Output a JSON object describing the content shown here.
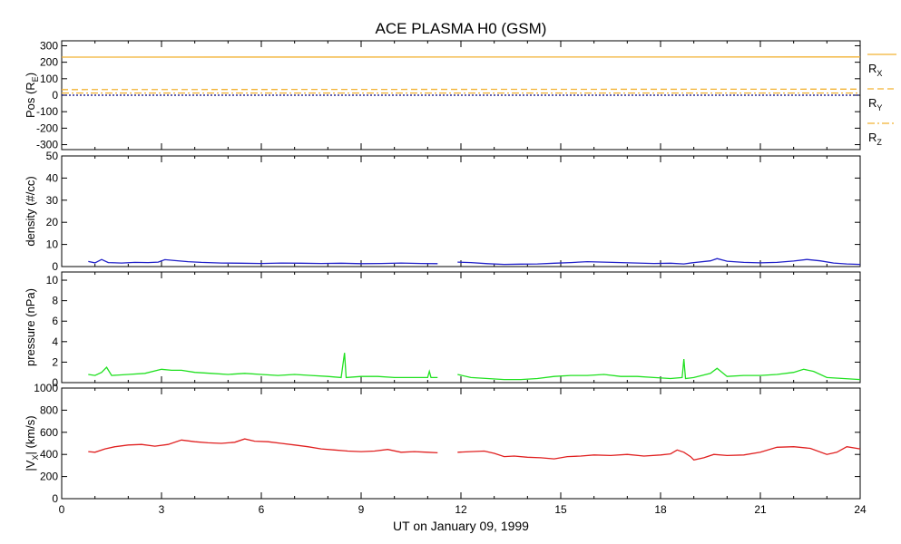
{
  "chart_data": {
    "type": "line",
    "title": "ACE PLASMA H0 (GSM)",
    "xlabel": "UT on January 09, 1999",
    "x_ticks": [
      0,
      3,
      6,
      9,
      12,
      15,
      18,
      21,
      24
    ],
    "xlim": [
      0,
      24
    ],
    "panels": [
      {
        "ylabel_main": "Pos (R",
        "ylabel_sub": "E",
        "ylabel_close": ")",
        "ylim": [
          -330,
          330
        ],
        "y_ticks": [
          -300,
          -200,
          -100,
          0,
          100,
          200,
          300
        ],
        "legend": [
          {
            "main": "R",
            "sub": "X",
            "dash": "solid"
          },
          {
            "main": "R",
            "sub": "Y",
            "dash": "dashed"
          },
          {
            "main": "R",
            "sub": "Z",
            "dash": "dashdot"
          }
        ],
        "series": [
          {
            "name": "RX",
            "color": "#f2b233",
            "dash": "solid",
            "x": [
              0,
              24
            ],
            "values": [
              231,
              232
            ]
          },
          {
            "name": "RY",
            "color": "#f2b233",
            "dash": "dashed",
            "x": [
              0,
              24
            ],
            "values": [
              34,
              37
            ]
          },
          {
            "name": "RZ",
            "color": "#f2b233",
            "dash": "dashdot",
            "x": [
              0,
              24
            ],
            "values": [
              13,
              13
            ]
          },
          {
            "name": "zero",
            "color": "#000080",
            "dash": "dotted",
            "x": [
              0,
              24
            ],
            "values": [
              0,
              0
            ]
          }
        ]
      },
      {
        "ylabel": "density (#/cc)",
        "ylim": [
          0,
          50
        ],
        "y_ticks": [
          0,
          10,
          20,
          30,
          40,
          50
        ],
        "series": [
          {
            "name": "density",
            "color": "#2020c8",
            "dash": "solid",
            "x": [
              0.8,
              1.0,
              1.2,
              1.4,
              1.8,
              2.2,
              2.6,
              2.9,
              3.1,
              3.4,
              3.8,
              4.2,
              4.8,
              5.4,
              6.0,
              6.6,
              7.2,
              7.8,
              8.4,
              9.0,
              9.6,
              10.2,
              10.8,
              11.3
            ],
            "values": [
              2.3,
              1.7,
              3.2,
              1.8,
              1.6,
              1.9,
              1.8,
              2.0,
              3.1,
              2.7,
              2.2,
              1.9,
              1.6,
              1.5,
              1.4,
              1.6,
              1.5,
              1.4,
              1.5,
              1.3,
              1.4,
              1.6,
              1.4,
              1.3
            ]
          },
          {
            "name": "density",
            "color": "#2020c8",
            "dash": "solid",
            "x": [
              11.9,
              12.3,
              12.8,
              13.3,
              13.8,
              14.3,
              14.8,
              15.3,
              15.8,
              16.3,
              16.8,
              17.3,
              17.8,
              18.3,
              18.7,
              19.0,
              19.5,
              19.7,
              20.0,
              20.5,
              21.0,
              21.5,
              22.0,
              22.4,
              22.8,
              23.2,
              23.6,
              24.0
            ],
            "values": [
              2.0,
              1.8,
              1.3,
              1.0,
              1.1,
              1.2,
              1.5,
              1.8,
              2.2,
              2.0,
              1.8,
              1.6,
              1.4,
              1.5,
              1.2,
              1.8,
              2.6,
              3.6,
              2.4,
              1.9,
              1.7,
              1.9,
              2.5,
              3.2,
              2.6,
              1.6,
              1.2,
              1.0
            ]
          }
        ]
      },
      {
        "ylabel": "pressure (nPa)",
        "ylim": [
          0,
          10.8
        ],
        "y_ticks": [
          0,
          2,
          4,
          6,
          8,
          10
        ],
        "series": [
          {
            "name": "pressure",
            "color": "#20e020",
            "dash": "solid",
            "x": [
              0.8,
              1.0,
              1.2,
              1.35,
              1.5,
              2.0,
              2.5,
              3.0,
              3.3,
              3.6,
              4.0,
              4.5,
              5.0,
              5.5,
              6.0,
              6.5,
              7.0,
              7.5,
              8.0,
              8.4,
              8.5,
              8.55,
              9.0,
              9.5,
              10.0,
              10.5,
              11.0,
              11.05,
              11.1,
              11.3
            ],
            "values": [
              0.8,
              0.7,
              1.0,
              1.5,
              0.7,
              0.8,
              0.9,
              1.3,
              1.2,
              1.2,
              1.0,
              0.9,
              0.8,
              0.9,
              0.8,
              0.7,
              0.8,
              0.7,
              0.6,
              0.5,
              2.9,
              0.5,
              0.6,
              0.6,
              0.5,
              0.5,
              0.5,
              1.1,
              0.5,
              0.5
            ]
          },
          {
            "name": "pressure",
            "color": "#20e020",
            "dash": "solid",
            "x": [
              11.9,
              12.3,
              12.8,
              13.3,
              13.8,
              14.3,
              14.8,
              15.3,
              15.8,
              16.3,
              16.8,
              17.3,
              17.8,
              18.3,
              18.65,
              18.7,
              18.75,
              19.0,
              19.5,
              19.7,
              20.0,
              20.5,
              21.0,
              21.5,
              22.0,
              22.3,
              22.6,
              23.0,
              23.5,
              24.0
            ],
            "values": [
              0.8,
              0.5,
              0.4,
              0.3,
              0.3,
              0.4,
              0.6,
              0.7,
              0.7,
              0.8,
              0.6,
              0.6,
              0.5,
              0.4,
              0.5,
              2.3,
              0.4,
              0.5,
              0.9,
              1.4,
              0.6,
              0.7,
              0.7,
              0.8,
              1.0,
              1.3,
              1.1,
              0.5,
              0.4,
              0.3
            ]
          }
        ]
      },
      {
        "ylabel_open": "|V",
        "ylabel_sub": "X",
        "ylabel_close": "| (km/s)",
        "ylim": [
          0,
          1000
        ],
        "y_ticks": [
          0,
          200,
          400,
          600,
          800,
          1000
        ],
        "series": [
          {
            "name": "Vx",
            "color": "#e02020",
            "dash": "solid",
            "x": [
              0.8,
              1.0,
              1.3,
              1.6,
              2.0,
              2.4,
              2.8,
              3.2,
              3.6,
              4.0,
              4.4,
              4.8,
              5.2,
              5.5,
              5.8,
              6.2,
              6.6,
              7.0,
              7.4,
              7.8,
              8.2,
              8.6,
              9.0,
              9.4,
              9.8,
              10.2,
              10.6,
              11.0,
              11.3
            ],
            "values": [
              425,
              420,
              450,
              470,
              485,
              490,
              475,
              490,
              530,
              515,
              505,
              500,
              510,
              540,
              520,
              515,
              500,
              485,
              470,
              450,
              440,
              430,
              425,
              430,
              445,
              420,
              425,
              420,
              415
            ]
          },
          {
            "name": "Vx",
            "color": "#e02020",
            "dash": "solid",
            "x": [
              11.9,
              12.3,
              12.7,
              13.0,
              13.3,
              13.6,
              14.0,
              14.4,
              14.8,
              15.2,
              15.6,
              16.0,
              16.5,
              17.0,
              17.5,
              18.0,
              18.3,
              18.5,
              18.7,
              18.9,
              19.0,
              19.3,
              19.6,
              20.0,
              20.5,
              21.0,
              21.5,
              22.0,
              22.5,
              23.0,
              23.3,
              23.6,
              24.0
            ],
            "values": [
              420,
              425,
              430,
              410,
              380,
              385,
              375,
              370,
              360,
              380,
              385,
              395,
              390,
              400,
              385,
              395,
              405,
              440,
              420,
              380,
              350,
              370,
              400,
              390,
              395,
              420,
              465,
              470,
              455,
              400,
              420,
              470,
              450
            ]
          }
        ]
      }
    ]
  }
}
